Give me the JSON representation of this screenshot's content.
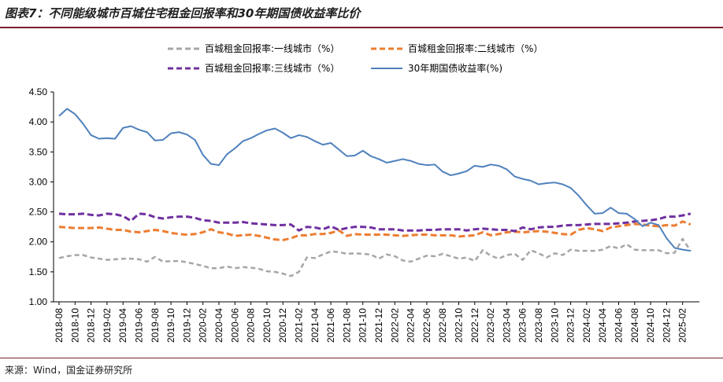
{
  "figure": {
    "title": "图表7：不同能级城市百城住宅租金回报率和30年期国债收益率比价",
    "source": "来源：Wind，国金证券研究所"
  },
  "colors": {
    "tier1": "#a6a6a6",
    "tier2": "#ed7d31",
    "tier3": "#7030a0",
    "bond": "#4f81bd",
    "rule": "#7a1f2b"
  },
  "chart_data": {
    "type": "line",
    "title": "",
    "xlabel": "",
    "ylabel": "",
    "ylim": [
      1.0,
      4.5
    ],
    "yticks": [
      "1.00",
      "1.50",
      "2.00",
      "2.50",
      "3.00",
      "3.50",
      "4.00",
      "4.50"
    ],
    "grid": false,
    "legend_position": "top-center",
    "x_tick_labels": [
      "2018-08",
      "2018-10",
      "2018-12",
      "2019-02",
      "2019-04",
      "2019-06",
      "2019-08",
      "2019-10",
      "2019-12",
      "2020-02",
      "2020-04",
      "2020-06",
      "2020-08",
      "2020-10",
      "2020-12",
      "2021-02",
      "2021-04",
      "2021-06",
      "2021-08",
      "2021-10",
      "2021-12",
      "2022-02",
      "2022-04",
      "2022-06",
      "2022-08",
      "2022-10",
      "2022-12",
      "2023-02",
      "2023-04",
      "2023-06",
      "2023-08",
      "2023-10",
      "2023-12",
      "2024-02",
      "2024-04",
      "2024-06",
      "2024-08",
      "2024-10",
      "2024-12",
      "2025-02"
    ],
    "series": [
      {
        "name": "百城租金回报率:一线城市（%）",
        "color": "#a6a6a6",
        "dash": "dashed",
        "values": [
          1.73,
          1.76,
          1.78,
          1.78,
          1.74,
          1.72,
          1.7,
          1.71,
          1.72,
          1.72,
          1.71,
          1.67,
          1.75,
          1.67,
          1.68,
          1.68,
          1.66,
          1.63,
          1.6,
          1.56,
          1.56,
          1.59,
          1.56,
          1.58,
          1.57,
          1.55,
          1.51,
          1.5,
          1.47,
          1.43,
          1.5,
          1.74,
          1.73,
          1.79,
          1.84,
          1.83,
          1.8,
          1.81,
          1.8,
          1.79,
          1.72,
          1.79,
          1.76,
          1.69,
          1.67,
          1.72,
          1.77,
          1.76,
          1.8,
          1.76,
          1.72,
          1.74,
          1.68,
          1.86,
          1.77,
          1.72,
          1.78,
          1.8,
          1.7,
          1.86,
          1.81,
          1.74,
          1.81,
          1.78,
          1.87,
          1.85,
          1.85,
          1.85,
          1.87,
          1.93,
          1.89,
          1.96,
          1.87,
          1.86,
          1.86,
          1.86,
          1.81,
          1.82,
          2.05,
          1.85
        ]
      },
      {
        "name": "百城租金回报率:二线城市（%）",
        "color": "#ed7d31",
        "dash": "dashed",
        "values": [
          2.25,
          2.24,
          2.23,
          2.23,
          2.23,
          2.24,
          2.22,
          2.2,
          2.2,
          2.17,
          2.16,
          2.18,
          2.2,
          2.18,
          2.15,
          2.13,
          2.12,
          2.13,
          2.16,
          2.21,
          2.16,
          2.14,
          2.1,
          2.11,
          2.12,
          2.1,
          2.07,
          2.04,
          2.03,
          2.06,
          2.11,
          2.11,
          2.13,
          2.13,
          2.15,
          2.19,
          2.1,
          2.13,
          2.12,
          2.12,
          2.12,
          2.12,
          2.11,
          2.1,
          2.11,
          2.12,
          2.12,
          2.11,
          2.11,
          2.11,
          2.09,
          2.1,
          2.11,
          2.16,
          2.11,
          2.13,
          2.16,
          2.17,
          2.16,
          2.17,
          2.18,
          2.17,
          2.15,
          2.13,
          2.12,
          2.2,
          2.23,
          2.21,
          2.18,
          2.24,
          2.26,
          2.28,
          2.3,
          2.29,
          2.27,
          2.26,
          2.28,
          2.27,
          2.34,
          2.29
        ]
      },
      {
        "name": "百城租金回报率:三线城市（%）",
        "color": "#7030a0",
        "dash": "dashed",
        "values": [
          2.47,
          2.46,
          2.46,
          2.47,
          2.45,
          2.44,
          2.47,
          2.46,
          2.43,
          2.35,
          2.47,
          2.46,
          2.41,
          2.39,
          2.41,
          2.42,
          2.42,
          2.4,
          2.36,
          2.35,
          2.32,
          2.32,
          2.32,
          2.33,
          2.31,
          2.3,
          2.29,
          2.28,
          2.28,
          2.29,
          2.19,
          2.25,
          2.24,
          2.21,
          2.26,
          2.2,
          2.23,
          2.25,
          2.25,
          2.24,
          2.21,
          2.21,
          2.21,
          2.19,
          2.19,
          2.19,
          2.2,
          2.2,
          2.21,
          2.21,
          2.21,
          2.19,
          2.21,
          2.22,
          2.21,
          2.2,
          2.2,
          2.18,
          2.24,
          2.21,
          2.24,
          2.25,
          2.25,
          2.27,
          2.28,
          2.28,
          2.29,
          2.3,
          2.3,
          2.3,
          2.31,
          2.32,
          2.34,
          2.35,
          2.36,
          2.38,
          2.42,
          2.42,
          2.44,
          2.47
        ]
      },
      {
        "name": "30年期国债收益率(%)",
        "color": "#4f81bd",
        "dash": "solid",
        "values": [
          4.1,
          4.22,
          4.13,
          3.97,
          3.78,
          3.72,
          3.73,
          3.72,
          3.9,
          3.93,
          3.87,
          3.83,
          3.69,
          3.7,
          3.81,
          3.83,
          3.79,
          3.7,
          3.45,
          3.3,
          3.28,
          3.46,
          3.56,
          3.68,
          3.73,
          3.8,
          3.86,
          3.89,
          3.82,
          3.73,
          3.78,
          3.75,
          3.68,
          3.62,
          3.65,
          3.54,
          3.43,
          3.44,
          3.52,
          3.43,
          3.38,
          3.32,
          3.35,
          3.38,
          3.35,
          3.3,
          3.28,
          3.29,
          3.17,
          3.11,
          3.14,
          3.18,
          3.27,
          3.25,
          3.29,
          3.27,
          3.21,
          3.09,
          3.05,
          3.02,
          2.96,
          2.98,
          2.99,
          2.96,
          2.9,
          2.77,
          2.61,
          2.47,
          2.48,
          2.57,
          2.48,
          2.47,
          2.38,
          2.26,
          2.32,
          2.28,
          2.06,
          1.9,
          1.87,
          1.85
        ]
      }
    ]
  }
}
